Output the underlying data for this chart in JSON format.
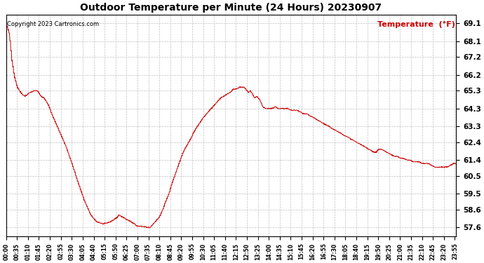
{
  "title": "Outdoor Temperature per Minute (24 Hours) 20230907",
  "copyright_text": "Copyright 2023 Cartronics.com",
  "legend_label": "Temperature  (°F)",
  "background_color": "#ffffff",
  "plot_bg_color": "#ffffff",
  "line_color": "#cc0000",
  "grid_color": "#b0b0b0",
  "yticks": [
    57.6,
    58.6,
    59.5,
    60.5,
    61.4,
    62.4,
    63.3,
    64.3,
    65.3,
    66.2,
    67.2,
    68.1,
    69.1
  ],
  "ylim": [
    57.1,
    69.6
  ],
  "xlim": [
    0,
    1439
  ],
  "xtick_positions": [
    0,
    35,
    70,
    105,
    140,
    175,
    210,
    245,
    280,
    315,
    350,
    385,
    420,
    455,
    490,
    525,
    560,
    595,
    630,
    665,
    700,
    735,
    770,
    805,
    840,
    875,
    910,
    945,
    980,
    1015,
    1050,
    1085,
    1120,
    1155,
    1190,
    1225,
    1260,
    1295,
    1330,
    1365,
    1400,
    1435
  ],
  "xtick_labels": [
    "00:00",
    "00:35",
    "01:10",
    "01:45",
    "02:20",
    "02:55",
    "03:30",
    "04:05",
    "04:40",
    "05:15",
    "05:50",
    "06:25",
    "07:00",
    "07:35",
    "08:10",
    "08:45",
    "09:20",
    "09:55",
    "10:30",
    "11:05",
    "11:40",
    "12:15",
    "12:50",
    "13:25",
    "14:00",
    "14:35",
    "15:10",
    "15:45",
    "16:20",
    "16:55",
    "17:30",
    "18:05",
    "18:40",
    "19:15",
    "19:50",
    "20:25",
    "21:00",
    "21:35",
    "22:10",
    "22:45",
    "23:20",
    "23:55"
  ],
  "curve_keypoints": [
    [
      0,
      69.1
    ],
    [
      10,
      68.5
    ],
    [
      18,
      67.0
    ],
    [
      25,
      66.2
    ],
    [
      35,
      65.5
    ],
    [
      50,
      65.1
    ],
    [
      60,
      65.0
    ],
    [
      75,
      65.2
    ],
    [
      90,
      65.3
    ],
    [
      100,
      65.3
    ],
    [
      110,
      65.0
    ],
    [
      120,
      64.9
    ],
    [
      135,
      64.5
    ],
    [
      150,
      63.8
    ],
    [
      170,
      63.0
    ],
    [
      190,
      62.2
    ],
    [
      210,
      61.2
    ],
    [
      230,
      60.1
    ],
    [
      250,
      59.1
    ],
    [
      270,
      58.3
    ],
    [
      290,
      57.9
    ],
    [
      310,
      57.8
    ],
    [
      330,
      57.9
    ],
    [
      350,
      58.1
    ],
    [
      360,
      58.3
    ],
    [
      370,
      58.2
    ],
    [
      380,
      58.1
    ],
    [
      390,
      58.0
    ],
    [
      400,
      57.9
    ],
    [
      410,
      57.8
    ],
    [
      415,
      57.7
    ],
    [
      455,
      57.6
    ],
    [
      460,
      57.6
    ],
    [
      465,
      57.7
    ],
    [
      470,
      57.8
    ],
    [
      475,
      57.9
    ],
    [
      480,
      58.0
    ],
    [
      490,
      58.2
    ],
    [
      500,
      58.6
    ],
    [
      510,
      59.1
    ],
    [
      520,
      59.5
    ],
    [
      530,
      60.1
    ],
    [
      540,
      60.6
    ],
    [
      550,
      61.1
    ],
    [
      560,
      61.6
    ],
    [
      570,
      62.0
    ],
    [
      580,
      62.3
    ],
    [
      590,
      62.6
    ],
    [
      600,
      63.0
    ],
    [
      615,
      63.4
    ],
    [
      630,
      63.8
    ],
    [
      645,
      64.1
    ],
    [
      655,
      64.3
    ],
    [
      665,
      64.5
    ],
    [
      675,
      64.7
    ],
    [
      685,
      64.9
    ],
    [
      695,
      65.0
    ],
    [
      705,
      65.1
    ],
    [
      715,
      65.2
    ],
    [
      725,
      65.4
    ],
    [
      735,
      65.4
    ],
    [
      745,
      65.5
    ],
    [
      755,
      65.5
    ],
    [
      760,
      65.5
    ],
    [
      765,
      65.4
    ],
    [
      770,
      65.3
    ],
    [
      775,
      65.2
    ],
    [
      780,
      65.3
    ],
    [
      785,
      65.2
    ],
    [
      790,
      65.0
    ],
    [
      795,
      64.9
    ],
    [
      800,
      65.0
    ],
    [
      805,
      64.9
    ],
    [
      810,
      64.8
    ],
    [
      815,
      64.6
    ],
    [
      820,
      64.4
    ],
    [
      830,
      64.3
    ],
    [
      840,
      64.3
    ],
    [
      850,
      64.3
    ],
    [
      860,
      64.4
    ],
    [
      870,
      64.3
    ],
    [
      880,
      64.3
    ],
    [
      890,
      64.3
    ],
    [
      900,
      64.3
    ],
    [
      910,
      64.2
    ],
    [
      920,
      64.2
    ],
    [
      930,
      64.2
    ],
    [
      940,
      64.1
    ],
    [
      950,
      64.0
    ],
    [
      960,
      64.0
    ],
    [
      970,
      63.9
    ],
    [
      980,
      63.8
    ],
    [
      990,
      63.7
    ],
    [
      1000,
      63.6
    ],
    [
      1010,
      63.5
    ],
    [
      1020,
      63.4
    ],
    [
      1030,
      63.3
    ],
    [
      1040,
      63.2
    ],
    [
      1050,
      63.1
    ],
    [
      1060,
      63.0
    ],
    [
      1070,
      62.9
    ],
    [
      1080,
      62.8
    ],
    [
      1090,
      62.7
    ],
    [
      1100,
      62.6
    ],
    [
      1110,
      62.5
    ],
    [
      1120,
      62.4
    ],
    [
      1130,
      62.3
    ],
    [
      1140,
      62.2
    ],
    [
      1150,
      62.1
    ],
    [
      1160,
      62.0
    ],
    [
      1170,
      61.9
    ],
    [
      1180,
      61.8
    ],
    [
      1190,
      62.0
    ],
    [
      1200,
      62.0
    ],
    [
      1210,
      61.9
    ],
    [
      1220,
      61.8
    ],
    [
      1230,
      61.7
    ],
    [
      1240,
      61.6
    ],
    [
      1250,
      61.6
    ],
    [
      1260,
      61.5
    ],
    [
      1270,
      61.5
    ],
    [
      1280,
      61.4
    ],
    [
      1290,
      61.4
    ],
    [
      1300,
      61.3
    ],
    [
      1310,
      61.3
    ],
    [
      1320,
      61.3
    ],
    [
      1330,
      61.2
    ],
    [
      1340,
      61.2
    ],
    [
      1350,
      61.2
    ],
    [
      1360,
      61.1
    ],
    [
      1370,
      61.0
    ],
    [
      1380,
      61.0
    ],
    [
      1390,
      61.0
    ],
    [
      1400,
      61.0
    ],
    [
      1410,
      61.0
    ],
    [
      1420,
      61.1
    ],
    [
      1430,
      61.2
    ],
    [
      1439,
      61.2
    ]
  ]
}
